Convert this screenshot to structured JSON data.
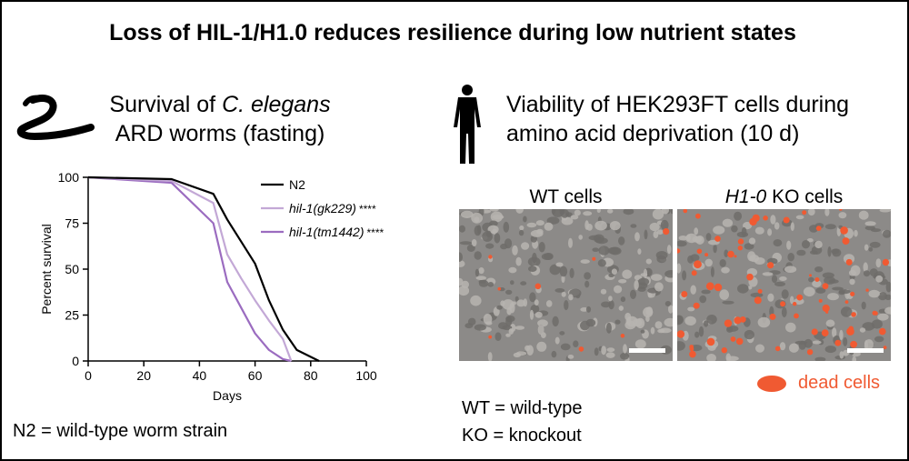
{
  "title": "Loss of HIL-1/H1.0 reduces resilience during low nutrient states",
  "left": {
    "subtitle_line1_pre": "Survival of ",
    "subtitle_line1_italic": "C. elegans",
    "subtitle_line2": "ARD worms (fasting)",
    "footnote": "N2 = wild-type worm strain"
  },
  "right": {
    "subtitle_line1": "Viability of HEK293FT cells during",
    "subtitle_line2": "amino acid deprivation (10 d)",
    "wt_label": "WT cells",
    "ko_label_italic": "H1-0",
    "ko_label_rest": " KO cells",
    "dead_cells_label": "dead cells",
    "abbrev_wt": "WT = wild-type",
    "abbrev_ko": "KO = knockout"
  },
  "colors": {
    "n2": "#000000",
    "gk229": "#c3a8d6",
    "tm1442": "#9b6cc0",
    "dead_cells": "#f05a32",
    "cell_background": "#8c8a88"
  },
  "chart_data": {
    "type": "line",
    "xlabel": "Days",
    "ylabel": "Percent survival",
    "xlim": [
      0,
      100
    ],
    "ylim": [
      0,
      100
    ],
    "xticks": [
      0,
      20,
      40,
      60,
      80,
      100
    ],
    "yticks": [
      0,
      25,
      50,
      75,
      100
    ],
    "grid": false,
    "legend_position": "top-right",
    "series": [
      {
        "name": "N2",
        "significance": "",
        "color": "#000000",
        "x": [
          0,
          30,
          45,
          50,
          55,
          60,
          65,
          70,
          75,
          83
        ],
        "y": [
          100,
          99,
          91,
          77,
          65,
          53,
          33,
          17,
          6,
          0
        ]
      },
      {
        "name": "hil-1(gk229)",
        "significance": "****",
        "color": "#c3a8d6",
        "x": [
          0,
          30,
          45,
          50,
          55,
          60,
          65,
          70,
          73
        ],
        "y": [
          100,
          98,
          86,
          58,
          45,
          33,
          22,
          12,
          0
        ]
      },
      {
        "name": "hil-1(tm1442)",
        "significance": "****",
        "color": "#9b6cc0",
        "x": [
          0,
          30,
          45,
          50,
          55,
          60,
          65,
          70,
          73
        ],
        "y": [
          100,
          97,
          75,
          43,
          29,
          15,
          6,
          1,
          0
        ]
      }
    ]
  }
}
